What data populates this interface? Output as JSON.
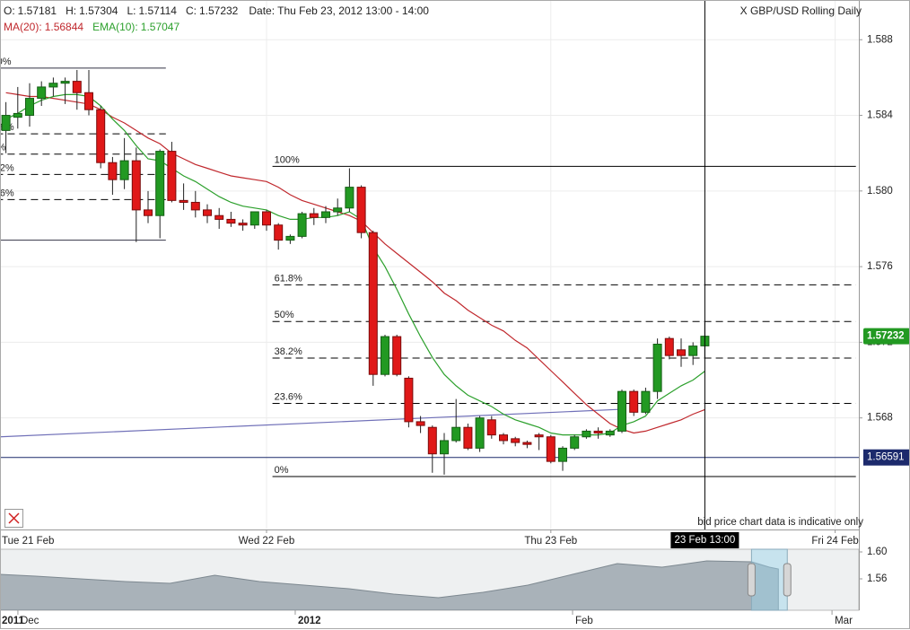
{
  "chart_data": {
    "type": "candlestick",
    "title": "X GBP/USD Rolling Daily",
    "date_label": "Date: Thu Feb 23, 2012 13:00 - 14:00",
    "ohlc_labels": {
      "open": "O:",
      "high": "H:",
      "low": "L:",
      "close": "C:"
    },
    "note": "bid price chart data is indicative only",
    "x": [
      "2012-02-21T02:00",
      "2012-02-21T03:00",
      "2012-02-21T04:00",
      "2012-02-21T05:00",
      "2012-02-21T06:00",
      "2012-02-21T07:00",
      "2012-02-21T08:00",
      "2012-02-21T09:00",
      "2012-02-21T10:00",
      "2012-02-21T11:00",
      "2012-02-21T12:00",
      "2012-02-21T13:00",
      "2012-02-21T14:00",
      "2012-02-21T15:00",
      "2012-02-21T16:00",
      "2012-02-21T17:00",
      "2012-02-21T18:00",
      "2012-02-21T19:00",
      "2012-02-21T20:00",
      "2012-02-21T21:00",
      "2012-02-21T22:00",
      "2012-02-21T23:00",
      "2012-02-22T00:00",
      "2012-02-22T01:00",
      "2012-02-22T02:00",
      "2012-02-22T03:00",
      "2012-02-22T04:00",
      "2012-02-22T05:00",
      "2012-02-22T06:00",
      "2012-02-22T07:00",
      "2012-02-22T08:00",
      "2012-02-22T09:00",
      "2012-02-22T10:00",
      "2012-02-22T11:00",
      "2012-02-22T12:00",
      "2012-02-22T13:00",
      "2012-02-22T14:00",
      "2012-02-22T15:00",
      "2012-02-22T16:00",
      "2012-02-22T17:00",
      "2012-02-22T18:00",
      "2012-02-22T19:00",
      "2012-02-22T20:00",
      "2012-02-22T21:00",
      "2012-02-22T22:00",
      "2012-02-22T23:00",
      "2012-02-23T00:00",
      "2012-02-23T01:00",
      "2012-02-23T02:00",
      "2012-02-23T03:00",
      "2012-02-23T04:00",
      "2012-02-23T05:00",
      "2012-02-23T06:00",
      "2012-02-23T07:00",
      "2012-02-23T08:00",
      "2012-02-23T09:00",
      "2012-02-23T10:00",
      "2012-02-23T11:00",
      "2012-02-23T12:00",
      "2012-02-23T13:00"
    ],
    "open": [
      1.5832,
      1.5839,
      1.584,
      1.5849,
      1.5855,
      1.5857,
      1.5858,
      1.5852,
      1.5843,
      1.5815,
      1.5806,
      1.5816,
      1.579,
      1.5787,
      1.5821,
      1.5795,
      1.5794,
      1.579,
      1.5787,
      1.5785,
      1.5783,
      1.5782,
      1.5789,
      1.5782,
      1.5774,
      1.5776,
      1.5788,
      1.5786,
      1.5789,
      1.5791,
      1.5802,
      1.5778,
      1.5703,
      1.5723,
      1.5701,
      1.5678,
      1.5675,
      1.5661,
      1.5668,
      1.5675,
      1.5664,
      1.5679,
      1.5671,
      1.5669,
      1.5667,
      1.5671,
      1.567,
      1.5657,
      1.5664,
      1.567,
      1.5673,
      1.5671,
      1.5673,
      1.5694,
      1.5683,
      1.5694,
      1.5722,
      1.5716,
      1.5713,
      1.57181
    ],
    "high": [
      1.5847,
      1.5855,
      1.5857,
      1.5858,
      1.586,
      1.586,
      1.5864,
      1.5864,
      1.5845,
      1.5818,
      1.5828,
      1.5823,
      1.58,
      1.5822,
      1.5826,
      1.5804,
      1.58,
      1.5793,
      1.5791,
      1.5789,
      1.5785,
      1.5789,
      1.579,
      1.5783,
      1.5777,
      1.5789,
      1.5791,
      1.5792,
      1.5796,
      1.5812,
      1.5803,
      1.5779,
      1.5724,
      1.5724,
      1.5702,
      1.5681,
      1.5676,
      1.5672,
      1.569,
      1.5677,
      1.5681,
      1.5681,
      1.5672,
      1.567,
      1.5668,
      1.5672,
      1.5671,
      1.5665,
      1.5671,
      1.5674,
      1.5675,
      1.5674,
      1.5695,
      1.5695,
      1.5696,
      1.5722,
      1.5723,
      1.5722,
      1.572,
      1.57304
    ],
    "low": [
      1.582,
      1.5833,
      1.5834,
      1.5845,
      1.585,
      1.5846,
      1.5843,
      1.584,
      1.5812,
      1.5798,
      1.5801,
      1.5773,
      1.5783,
      1.5775,
      1.5794,
      1.579,
      1.5786,
      1.5783,
      1.578,
      1.5781,
      1.5779,
      1.578,
      1.5779,
      1.5769,
      1.5772,
      1.5775,
      1.5782,
      1.5783,
      1.5787,
      1.5789,
      1.5775,
      1.5697,
      1.5702,
      1.5702,
      1.5675,
      1.5672,
      1.5651,
      1.565,
      1.5667,
      1.5663,
      1.5662,
      1.5669,
      1.5666,
      1.5665,
      1.5664,
      1.5663,
      1.5656,
      1.5652,
      1.5663,
      1.5669,
      1.5669,
      1.567,
      1.5672,
      1.5681,
      1.5682,
      1.569,
      1.5711,
      1.5707,
      1.5708,
      1.57114
    ],
    "close": [
      1.584,
      1.5841,
      1.5849,
      1.5855,
      1.5857,
      1.5858,
      1.5852,
      1.5843,
      1.5815,
      1.5806,
      1.5816,
      1.579,
      1.5787,
      1.5821,
      1.5795,
      1.5794,
      1.579,
      1.5787,
      1.5785,
      1.5783,
      1.5782,
      1.5789,
      1.5782,
      1.5774,
      1.5776,
      1.5788,
      1.5786,
      1.5789,
      1.5791,
      1.5802,
      1.5778,
      1.5703,
      1.5723,
      1.5703,
      1.5678,
      1.5676,
      1.5661,
      1.5668,
      1.5675,
      1.5664,
      1.568,
      1.5671,
      1.5668,
      1.5667,
      1.5666,
      1.567,
      1.5657,
      1.5664,
      1.567,
      1.5673,
      1.5672,
      1.5673,
      1.5694,
      1.5683,
      1.5694,
      1.5719,
      1.5713,
      1.5713,
      1.5718,
      1.57232
    ],
    "up_color": "#229922",
    "down_color": "#e01818",
    "overlays": [
      {
        "name": "MA(20):",
        "color": "#c0282d",
        "values": [
          1.5852,
          1.5851,
          1.585,
          1.585,
          1.5849,
          1.5848,
          1.5847,
          1.5846,
          1.5843,
          1.5839,
          1.5836,
          1.5832,
          1.5828,
          1.5825,
          1.582,
          1.5817,
          1.5814,
          1.5812,
          1.581,
          1.5808,
          1.5807,
          1.5806,
          1.5805,
          1.5802,
          1.5798,
          1.5795,
          1.5793,
          1.5791,
          1.5789,
          1.5787,
          1.5784,
          1.5778,
          1.5772,
          1.5767,
          1.5762,
          1.5757,
          1.5752,
          1.5746,
          1.5742,
          1.5737,
          1.5733,
          1.5729,
          1.5726,
          1.5721,
          1.5717,
          1.5711,
          1.5705,
          1.5699,
          1.5693,
          1.5687,
          1.5682,
          1.5677,
          1.5674,
          1.5672,
          1.5673,
          1.5675,
          1.5677,
          1.5679,
          1.5682,
          1.56844
        ]
      },
      {
        "name": "EMA(10):",
        "color": "#2ca02c",
        "values": [
          1.5838,
          1.5841,
          1.5845,
          1.5848,
          1.585,
          1.5851,
          1.5851,
          1.585,
          1.5845,
          1.5838,
          1.5832,
          1.5824,
          1.5817,
          1.5816,
          1.5812,
          1.5808,
          1.5805,
          1.5801,
          1.5797,
          1.5794,
          1.5792,
          1.5791,
          1.579,
          1.5787,
          1.5785,
          1.5785,
          1.5786,
          1.5786,
          1.5787,
          1.5789,
          1.5785,
          1.577,
          1.576,
          1.5748,
          1.5735,
          1.5723,
          1.5712,
          1.5703,
          1.5697,
          1.5692,
          1.5689,
          1.5686,
          1.5682,
          1.5679,
          1.5677,
          1.5675,
          1.5672,
          1.5671,
          1.5671,
          1.5671,
          1.5671,
          1.5672,
          1.5676,
          1.5678,
          1.5681,
          1.5689,
          1.5693,
          1.5697,
          1.57,
          1.57047
        ]
      }
    ],
    "xlim": [
      "2012-02-21T01:30",
      "2012-02-24T02:00"
    ],
    "xticks": [
      {
        "value": "2012-02-21T00:00",
        "label": "Tue 21 Feb"
      },
      {
        "value": "2012-02-22T00:00",
        "label": "Wed 22 Feb"
      },
      {
        "value": "2012-02-23T00:00",
        "label": "Thu 23 Feb"
      },
      {
        "value": "2012-02-24T00:00",
        "label": "Fri 24 Feb"
      }
    ],
    "ylim": [
      1.5621,
      1.5901
    ],
    "yticks": [
      1.588,
      1.584,
      {
        "value": 1.58,
        "label": "1.580"
      },
      1.576,
      1.572,
      1.568
    ],
    "grid": true,
    "hlines": [
      {
        "value": 1.56591,
        "color": "#1c2a6c"
      }
    ],
    "crosshair": {
      "x": "2012-02-23T13:00",
      "label": "23 Feb 13:00"
    },
    "trendline": {
      "x": [
        "2012-02-21T01:30",
        "2012-02-23T05:45"
      ],
      "y": [
        1.567,
        1.56845
      ],
      "color": "#7070b8"
    },
    "fibonacci": {
      "levels": [
        {
          "value": 100,
          "label": "100%"
        },
        {
          "value": 61.8,
          "label": "61.8%"
        },
        {
          "value": 50,
          "label": "50%"
        },
        {
          "value": 38.2,
          "label": "38.2%"
        },
        {
          "value": 23.6,
          "label": "23.6%"
        },
        {
          "value": 0,
          "label": "0%"
        }
      ],
      "retracements": [
        {
          "start": "2012-02-21T00:10",
          "end": "2012-02-21T15:30",
          "high": 1.5865,
          "low": 1.5774
        },
        {
          "start": "2012-02-22T00:30",
          "end": "2012-02-24T01:45",
          "high": 1.5813,
          "low": 1.5649
        }
      ]
    },
    "navigator": {
      "year_label": "2011",
      "x": [
        "2011-11-29",
        "2011-12-03",
        "2011-12-08",
        "2011-12-13",
        "2011-12-18",
        "2011-12-23",
        "2011-12-28",
        "2012-01-02",
        "2012-01-07",
        "2012-01-12",
        "2012-01-17",
        "2012-01-22",
        "2012-01-27",
        "2012-02-01",
        "2012-02-06",
        "2012-02-11",
        "2012-02-16",
        "2012-02-21",
        "2012-02-23",
        "2012-02-24"
      ],
      "values": [
        1.5667,
        1.564,
        1.56,
        1.556,
        1.5533,
        1.5653,
        1.556,
        1.5507,
        1.5453,
        1.5373,
        1.532,
        1.54,
        1.5507,
        1.5667,
        1.5827,
        1.5773,
        1.5867,
        1.5853,
        1.5773,
        1.5747
      ],
      "xlim": [
        "2011-11-29",
        "2012-03-04"
      ],
      "xticks": [
        {
          "value": "2011-12-01",
          "label": "Dec"
        },
        {
          "value": "2012-01-01",
          "label": "2012"
        },
        {
          "value": "2012-02-01",
          "label": "Feb"
        },
        {
          "value": "2012-03-01",
          "label": "Mar"
        }
      ],
      "ylim": [
        1.5133,
        1.604
      ],
      "yticks": [
        {
          "value": 1.6,
          "label": "1.60"
        },
        {
          "value": 1.56,
          "label": "1.56"
        }
      ],
      "window": [
        "2012-02-21",
        "2012-02-25"
      ],
      "color": "#a9b2b9"
    }
  }
}
